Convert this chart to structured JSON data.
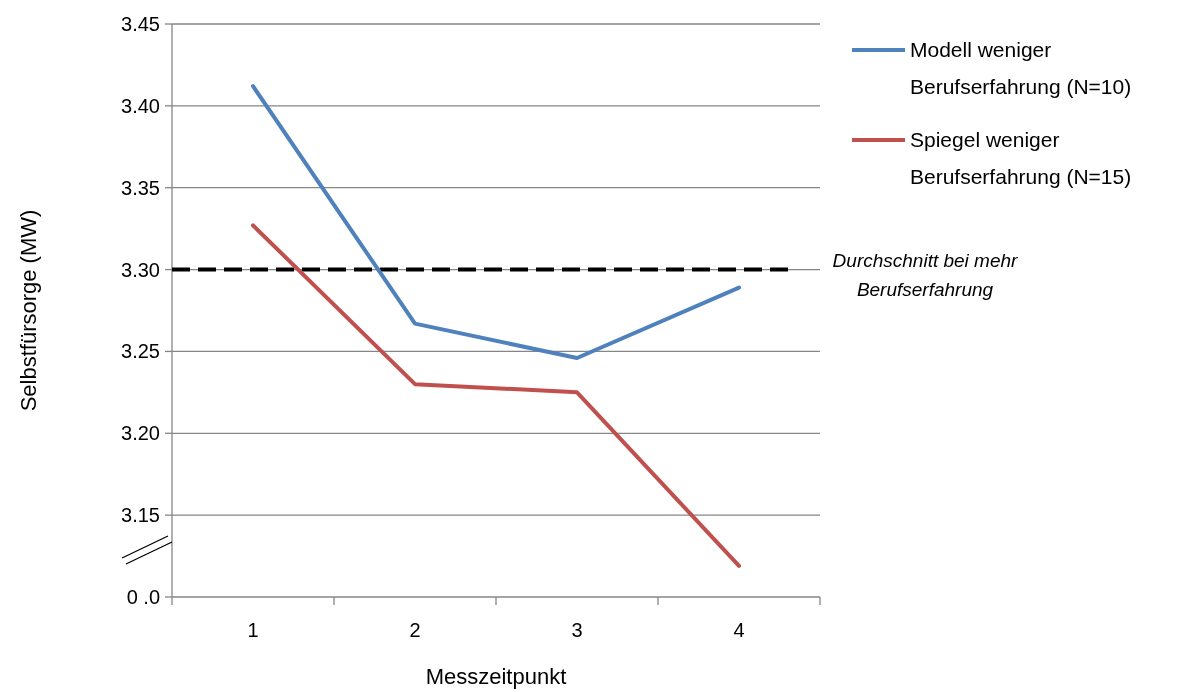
{
  "chart_data": {
    "type": "line",
    "xlabel": "Messzeitpunkt",
    "ylabel": "Selbstfürsorge (MW)",
    "categories": [
      "1",
      "2",
      "3",
      "4"
    ],
    "series": [
      {
        "name": "Modell weniger Berufserfahrung (N=10)",
        "color": "#4f81bd",
        "values": [
          3.412,
          3.267,
          3.246,
          3.289
        ]
      },
      {
        "name": "Spiegel weniger Berufserfahrung (N=15)",
        "color": "#c0504d",
        "values": [
          3.327,
          3.23,
          3.225,
          3.119
        ]
      }
    ],
    "ylim": [
      3.1,
      3.45
    ],
    "yticks": [
      {
        "value": 3.1,
        "label": "0 .0"
      },
      {
        "value": 3.15,
        "label": "3.15"
      },
      {
        "value": 3.2,
        "label": "3.20"
      },
      {
        "value": 3.25,
        "label": "3.25"
      },
      {
        "value": 3.3,
        "label": "3.30"
      },
      {
        "value": 3.35,
        "label": "3.35"
      },
      {
        "value": 3.4,
        "label": "3.40"
      },
      {
        "value": 3.45,
        "label": "3.45"
      }
    ],
    "ref_lines": [
      {
        "axis": "y",
        "value": 3.3,
        "label": "Durchschnitt bei mehr Berufserfahrung",
        "color": "#000000",
        "line_style": "dashed"
      }
    ],
    "grid": "y",
    "legend": "top right",
    "marker": "none",
    "line_style": "solid"
  }
}
